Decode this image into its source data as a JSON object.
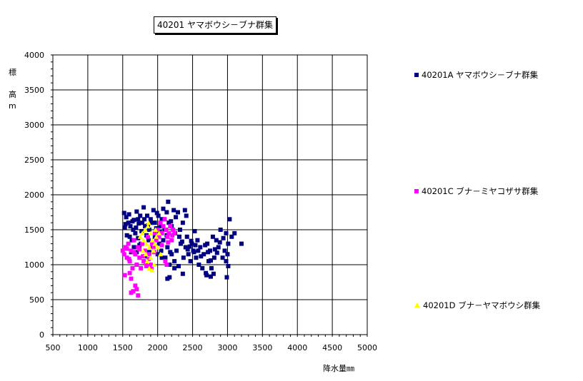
{
  "chart_data": {
    "type": "scatter",
    "title": "40201 ヤマボウシ－ブナ群集",
    "xlabel": "降水量㎜",
    "ylabel_lines": [
      "標",
      "高",
      "m"
    ],
    "xlim": [
      500,
      5000
    ],
    "ylim": [
      0,
      4000
    ],
    "xticks": [
      500,
      1000,
      1500,
      2000,
      2500,
      3000,
      3500,
      4000,
      4500,
      5000
    ],
    "yticks": [
      0,
      500,
      1000,
      1500,
      2000,
      2500,
      3000,
      3500,
      4000
    ],
    "grid": true,
    "legend_position": "right",
    "series": [
      {
        "name": "40201A ヤマボウシ－ブナ群集",
        "color": "#000080",
        "marker": "square",
        "points": [
          [
            1520,
            1740
          ],
          [
            1550,
            1680
          ],
          [
            1580,
            1600
          ],
          [
            1610,
            1550
          ],
          [
            1650,
            1500
          ],
          [
            1660,
            1640
          ],
          [
            1700,
            1760
          ],
          [
            1720,
            1650
          ],
          [
            1750,
            1700
          ],
          [
            1780,
            1600
          ],
          [
            1800,
            1820
          ],
          [
            1820,
            1550
          ],
          [
            1850,
            1700
          ],
          [
            1880,
            1500
          ],
          [
            1900,
            1650
          ],
          [
            1940,
            1780
          ],
          [
            1960,
            1600
          ],
          [
            1990,
            1740
          ],
          [
            2010,
            1700
          ],
          [
            2040,
            1550
          ],
          [
            2060,
            1650
          ],
          [
            2080,
            1800
          ],
          [
            2100,
            1500
          ],
          [
            2130,
            1750
          ],
          [
            2150,
            1900
          ],
          [
            2160,
            1600
          ],
          [
            2200,
            1550
          ],
          [
            2230,
            1780
          ],
          [
            2260,
            1680
          ],
          [
            2290,
            1750
          ],
          [
            2320,
            1500
          ],
          [
            2360,
            1600
          ],
          [
            2390,
            1780
          ],
          [
            2410,
            1700
          ],
          [
            1540,
            1580
          ],
          [
            1600,
            1400
          ],
          [
            1630,
            1350
          ],
          [
            1680,
            1450
          ],
          [
            1720,
            1380
          ],
          [
            1760,
            1300
          ],
          [
            1840,
            1420
          ],
          [
            1870,
            1350
          ],
          [
            1960,
            1400
          ],
          [
            2020,
            1300
          ],
          [
            2050,
            1200
          ],
          [
            2080,
            1350
          ],
          [
            2110,
            1100
          ],
          [
            2140,
            1250
          ],
          [
            2170,
            1000
          ],
          [
            2200,
            1150
          ],
          [
            2240,
            1050
          ],
          [
            2270,
            1200
          ],
          [
            2300,
            980
          ],
          [
            2330,
            1300
          ],
          [
            2370,
            1100
          ],
          [
            2400,
            1250
          ],
          [
            2420,
            1400
          ],
          [
            2440,
            1150
          ],
          [
            2470,
            1050
          ],
          [
            2490,
            1300
          ],
          [
            2510,
            1200
          ],
          [
            2530,
            1480
          ],
          [
            2550,
            1100
          ],
          [
            2570,
            1350
          ],
          [
            2590,
            1000
          ],
          [
            2610,
            1250
          ],
          [
            2640,
            950
          ],
          [
            2660,
            1150
          ],
          [
            2690,
            880
          ],
          [
            2710,
            1300
          ],
          [
            2730,
            1050
          ],
          [
            2750,
            1200
          ],
          [
            2770,
            950
          ],
          [
            2790,
            1400
          ],
          [
            2810,
            1100
          ],
          [
            2840,
            1350
          ],
          [
            2870,
            1250
          ],
          [
            2900,
            1500
          ],
          [
            2930,
            1100
          ],
          [
            2960,
            1200
          ],
          [
            2980,
            1450
          ],
          [
            3010,
            1300
          ],
          [
            3030,
            1650
          ],
          [
            3060,
            1400
          ],
          [
            3100,
            1450
          ],
          [
            3200,
            1300
          ],
          [
            2990,
            820
          ],
          [
            3010,
            980
          ],
          [
            2140,
            800
          ],
          [
            2170,
            820
          ],
          [
            2360,
            870
          ],
          [
            2700,
            850
          ],
          [
            2760,
            830
          ],
          [
            2800,
            870
          ],
          [
            2850,
            1170
          ],
          [
            2980,
            1050
          ],
          [
            2520,
            1180
          ],
          [
            2460,
            1260
          ],
          [
            2240,
            950
          ],
          [
            2180,
            1180
          ],
          [
            2130,
            1420
          ],
          [
            2060,
            1100
          ],
          [
            2000,
            1150
          ],
          [
            1930,
            1250
          ],
          [
            1880,
            1180
          ],
          [
            1820,
            1120
          ],
          [
            1780,
            1300
          ],
          [
            1740,
            1280
          ],
          [
            1700,
            1180
          ],
          [
            1660,
            1250
          ],
          [
            1620,
            1180
          ],
          [
            1560,
            1420
          ],
          [
            1530,
            1530
          ],
          [
            1590,
            1720
          ],
          [
            1640,
            1620
          ],
          [
            1690,
            1530
          ],
          [
            1730,
            1590
          ],
          [
            1770,
            1480
          ],
          [
            1810,
            1650
          ],
          [
            1860,
            1560
          ],
          [
            1910,
            1600
          ],
          [
            1980,
            1520
          ],
          [
            2030,
            1470
          ],
          [
            2090,
            1650
          ],
          [
            2190,
            1620
          ],
          [
            2250,
            1450
          ],
          [
            2310,
            1400
          ],
          [
            2350,
            1330
          ],
          [
            2430,
            1220
          ],
          [
            2480,
            1340
          ],
          [
            2540,
            1280
          ],
          [
            2580,
            1200
          ],
          [
            2620,
            1120
          ],
          [
            2680,
            1280
          ],
          [
            2720,
            1180
          ],
          [
            2760,
            1060
          ],
          [
            2820,
            1220
          ],
          [
            2890,
            1320
          ],
          [
            2940,
            1380
          ],
          [
            3000,
            1150
          ]
        ]
      },
      {
        "name": "40201C ブナ－ミヤコザサ群集",
        "color": "#ff00ff",
        "marker": "square",
        "points": [
          [
            1500,
            1200
          ],
          [
            1520,
            1150
          ],
          [
            1540,
            1250
          ],
          [
            1560,
            1100
          ],
          [
            1580,
            1300
          ],
          [
            1600,
            1050
          ],
          [
            1620,
            1200
          ],
          [
            1640,
            950
          ],
          [
            1660,
            1350
          ],
          [
            1680,
            1150
          ],
          [
            1700,
            1000
          ],
          [
            1720,
            1250
          ],
          [
            1740,
            1100
          ],
          [
            1760,
            950
          ],
          [
            1780,
            1300
          ],
          [
            1800,
            1050
          ],
          [
            1820,
            1200
          ],
          [
            1840,
            980
          ],
          [
            1860,
            1400
          ],
          [
            1880,
            1150
          ],
          [
            1900,
            1000
          ],
          [
            1920,
            1300
          ],
          [
            1940,
            1250
          ],
          [
            1960,
            1450
          ],
          [
            1980,
            1350
          ],
          [
            2000,
            1500
          ],
          [
            2020,
            1400
          ],
          [
            2040,
            1600
          ],
          [
            2060,
            1450
          ],
          [
            2080,
            1550
          ],
          [
            2100,
            1650
          ],
          [
            2120,
            1500
          ],
          [
            2140,
            1400
          ],
          [
            2160,
            1450
          ],
          [
            2180,
            1550
          ],
          [
            2200,
            1350
          ],
          [
            2220,
            1500
          ],
          [
            2240,
            1450
          ],
          [
            2110,
            1050
          ],
          [
            2130,
            1000
          ],
          [
            1530,
            850
          ],
          [
            1600,
            880
          ],
          [
            1620,
            600
          ],
          [
            1650,
            620
          ],
          [
            1680,
            700
          ],
          [
            1700,
            650
          ],
          [
            1720,
            560
          ],
          [
            1620,
            800
          ],
          [
            1560,
            1230
          ],
          [
            1590,
            1080
          ],
          [
            1660,
            1180
          ],
          [
            1740,
            1220
          ],
          [
            1790,
            1120
          ],
          [
            1830,
            1020
          ],
          [
            1870,
            1080
          ],
          [
            1910,
            950
          ],
          [
            1950,
            1180
          ],
          [
            2060,
            1280
          ],
          [
            2150,
            1320
          ],
          [
            2210,
            1420
          ]
        ]
      },
      {
        "name": "40201D ブナ－ヤマボウシ群集",
        "color": "#ffff00",
        "marker": "triangle",
        "points": [
          [
            1750,
            1400
          ],
          [
            1780,
            1450
          ],
          [
            1800,
            1350
          ],
          [
            1820,
            1500
          ],
          [
            1840,
            1300
          ],
          [
            1860,
            1550
          ],
          [
            1880,
            1250
          ],
          [
            1900,
            1450
          ],
          [
            1920,
            1350
          ],
          [
            1940,
            1200
          ],
          [
            1960,
            1300
          ],
          [
            1980,
            1400
          ],
          [
            2000,
            1250
          ],
          [
            2020,
            1450
          ],
          [
            1850,
            1050
          ],
          [
            1880,
            950
          ],
          [
            1900,
            1100
          ],
          [
            1920,
            920
          ],
          [
            1950,
            1000
          ],
          [
            1790,
            1200
          ],
          [
            1830,
            1150
          ],
          [
            1870,
            1600
          ],
          [
            2040,
            1150
          ],
          [
            1970,
            1500
          ]
        ]
      }
    ]
  }
}
